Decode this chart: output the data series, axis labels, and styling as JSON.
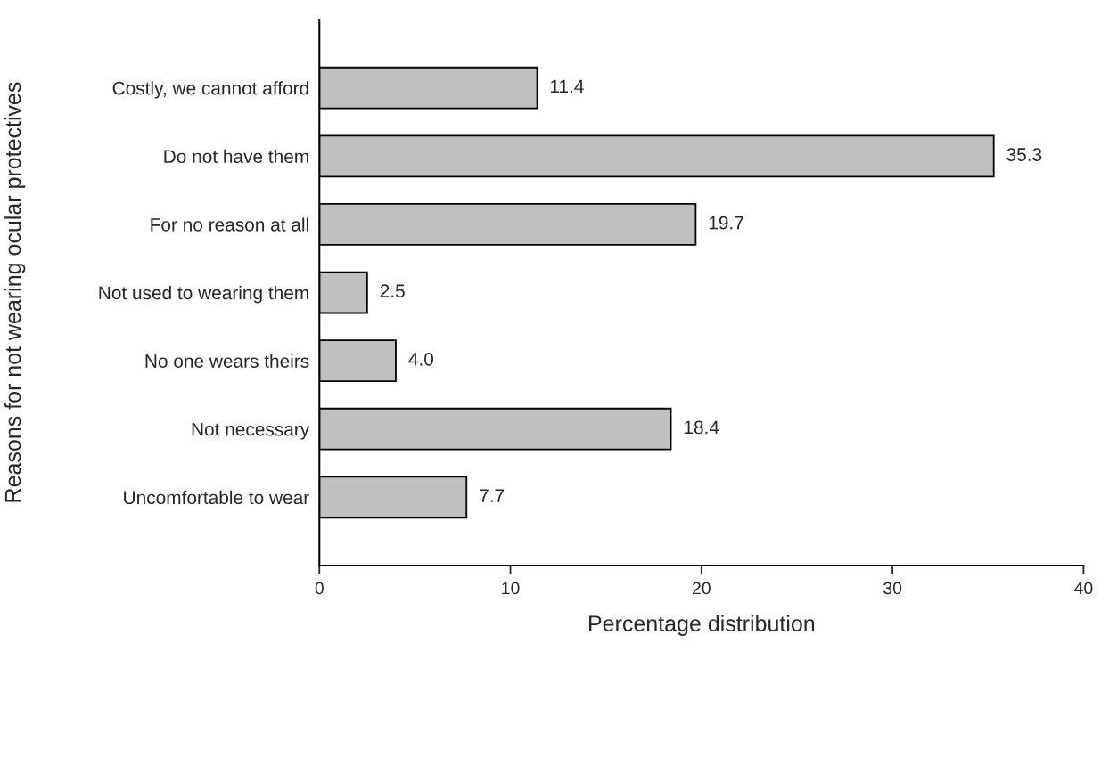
{
  "chart_data": {
    "type": "bar",
    "orientation": "horizontal",
    "categories": [
      "Costly, we cannot afford",
      "Do not have them",
      "For no reason at all",
      "Not used to wearing them",
      "No one wears theirs",
      "Not necessary",
      "Uncomfortable to wear"
    ],
    "values": [
      11.4,
      35.3,
      19.7,
      2.5,
      4.0,
      18.4,
      7.7
    ],
    "value_labels": [
      "11.4",
      "35.3",
      "19.7",
      "2.5",
      "4.0",
      "18.4",
      "7.7"
    ],
    "color": "#c0c0c0",
    "xlabel": "Percentage distribution",
    "ylabel": "Reasons for not wearing ocular protectives",
    "xlim": [
      0,
      40
    ],
    "xticks": [
      0,
      10,
      20,
      30,
      40
    ],
    "grid": false,
    "legend": false
  }
}
